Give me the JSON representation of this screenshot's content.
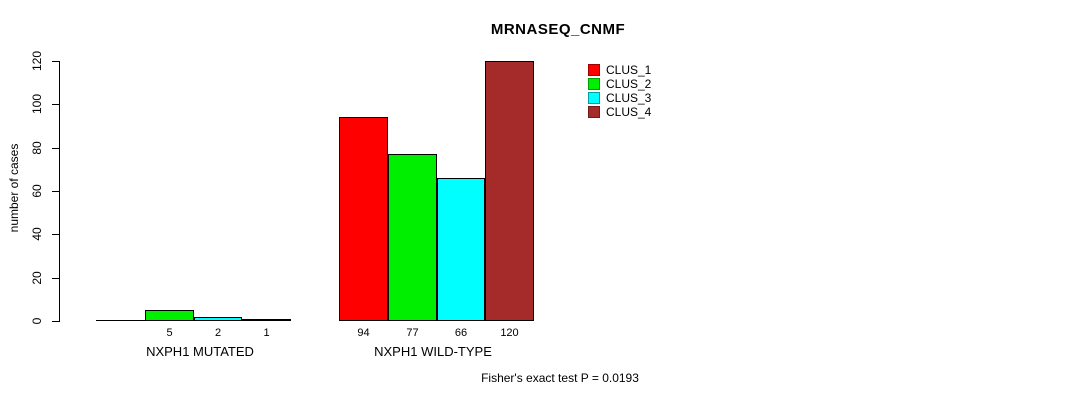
{
  "title": "MRNASEQ_CNMF",
  "footer": "Fisher's exact test P = 0.0193",
  "chart_data": {
    "type": "bar",
    "title": "MRNASEQ_CNMF",
    "xlabel": "",
    "ylabel": "number of cases",
    "ylim": [
      0,
      120
    ],
    "yticks": [
      0,
      20,
      40,
      60,
      80,
      100,
      120
    ],
    "grid": false,
    "legend_position": "top-right",
    "categories": [
      "NXPH1 MUTATED",
      "NXPH1 WILD-TYPE"
    ],
    "series": [
      {
        "name": "CLUS_1",
        "color": "#ff0000",
        "border": "#a00000",
        "values": [
          0,
          94
        ]
      },
      {
        "name": "CLUS_2",
        "color": "#00ee00",
        "border": "#00a000",
        "values": [
          5,
          77
        ]
      },
      {
        "name": "CLUS_3",
        "color": "#00ffff",
        "border": "#00a0a0",
        "values": [
          2,
          66
        ]
      },
      {
        "name": "CLUS_4",
        "color": "#a52a2a",
        "border": "#6e1c1c",
        "values": [
          1,
          120
        ]
      }
    ],
    "bar_value_labels": [
      [
        "",
        "5",
        "2",
        "1"
      ],
      [
        "94",
        "77",
        "66",
        "120"
      ]
    ],
    "annotation": "Fisher's exact test P = 0.0193"
  }
}
